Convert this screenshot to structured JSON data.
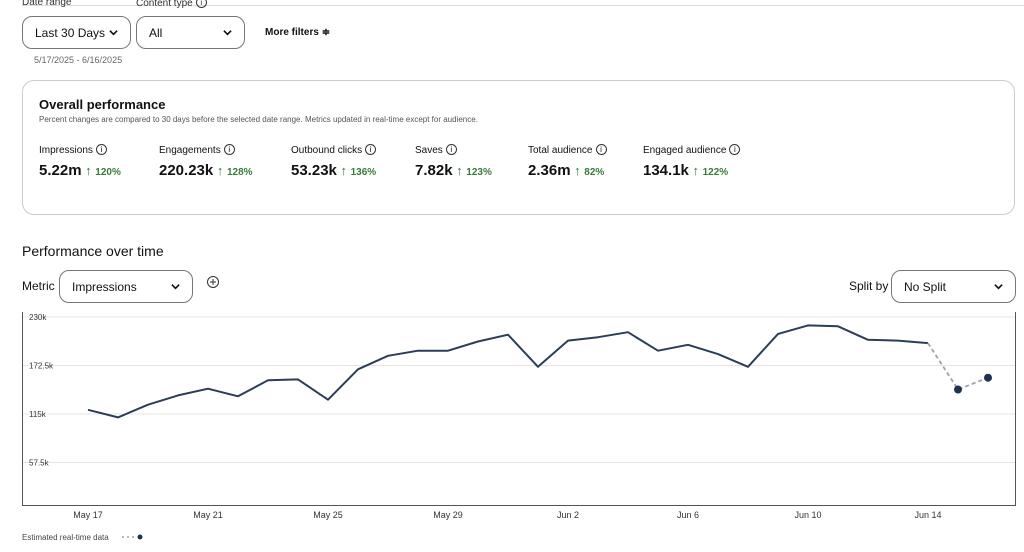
{
  "filters": {
    "date_range_label": "Date range",
    "date_range_value": "Last 30 Days",
    "content_type_label": "Content type",
    "content_type_value": "All",
    "more_filters": "More filters",
    "date_span": "5/17/2025 - 6/16/2025"
  },
  "overview": {
    "title": "Overall performance",
    "subtitle": "Percent changes are compared to 30 days before the selected date range. Metrics updated in real-time except for audience.",
    "metrics": [
      {
        "label": "Impressions",
        "value": "5.22m",
        "change": "120%"
      },
      {
        "label": "Engagements",
        "value": "220.23k",
        "change": "128%"
      },
      {
        "label": "Outbound clicks",
        "value": "53.23k",
        "change": "136%"
      },
      {
        "label": "Saves",
        "value": "7.82k",
        "change": "123%"
      },
      {
        "label": "Total audience",
        "value": "2.36m",
        "change": "82%"
      },
      {
        "label": "Engaged audience",
        "value": "134.1k",
        "change": "122%"
      }
    ]
  },
  "section": {
    "title": "Performance over time",
    "metric_label": "Metric",
    "metric_value": "Impressions",
    "split_label": "Split by",
    "split_value": "No Split"
  },
  "chart_data": {
    "type": "line",
    "categories": [
      "May 17",
      null,
      null,
      null,
      "May 21",
      null,
      null,
      null,
      "May 25",
      null,
      null,
      null,
      "May 29",
      null,
      null,
      null,
      "Jun 2",
      null,
      null,
      null,
      "Jun 6",
      null,
      null,
      null,
      "Jun 10",
      null,
      null,
      null,
      "Jun 14",
      null,
      null
    ],
    "series": [
      {
        "color": "#2b3d57",
        "dashed": false,
        "markers": false,
        "values": [
          120000,
          111000,
          126000,
          137000,
          145000,
          136000,
          155000,
          156000,
          132000,
          168000,
          184000,
          190000,
          190000,
          201000,
          209000,
          171000,
          202000,
          206000,
          212000,
          190000,
          197000,
          186000,
          171000,
          210000,
          220000,
          219000,
          203000,
          202000,
          199000,
          null,
          null
        ]
      },
      {
        "name": "Estimated real-time data",
        "color": "#9aa3b0",
        "marker_color": "#1f3350",
        "dashed": true,
        "markers": true,
        "values": [
          null,
          null,
          null,
          null,
          null,
          null,
          null,
          null,
          null,
          null,
          null,
          null,
          null,
          null,
          null,
          null,
          null,
          null,
          null,
          null,
          null,
          null,
          null,
          null,
          null,
          null,
          null,
          null,
          199000,
          144000,
          158000
        ]
      }
    ],
    "ylim": [
      0,
      230000
    ],
    "yticks": [
      {
        "value": 57500,
        "label": "57.5k"
      },
      {
        "value": 115000,
        "label": "115k"
      },
      {
        "value": 172500,
        "label": "172.5k"
      },
      {
        "value": 230000,
        "label": "230k"
      }
    ],
    "grid": true
  }
}
